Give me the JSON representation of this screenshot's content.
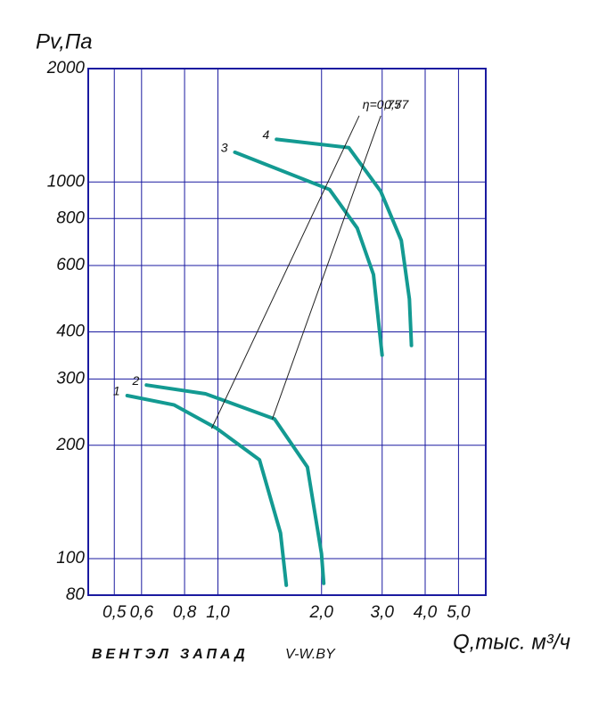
{
  "chart_data": {
    "type": "line",
    "log_x": true,
    "log_y": true,
    "grid": true,
    "y_label": "Pv,Па",
    "x_label": "Q,тыс. м³/ч",
    "xlim": [
      0.42,
      6
    ],
    "ylim": [
      80,
      2000
    ],
    "xticks": [
      {
        "value": 0.5,
        "label": "0,5"
      },
      {
        "value": 0.6,
        "label": "0,6"
      },
      {
        "value": 0.8,
        "label": "0,8"
      },
      {
        "value": 1.0,
        "label": "1,0"
      },
      {
        "value": 2.0,
        "label": "2,0"
      },
      {
        "value": 3.0,
        "label": "3,0"
      },
      {
        "value": 4.0,
        "label": "4,0"
      },
      {
        "value": 5.0,
        "label": "5,0"
      }
    ],
    "yticks": [
      80,
      100,
      200,
      300,
      400,
      600,
      800,
      1000,
      2000
    ],
    "series": [
      {
        "name": "1",
        "color": "#139a92",
        "width": 4,
        "x": [
          0.545,
          0.745,
          0.99,
          1.32,
          1.52,
          1.58
        ],
        "values": [
          271,
          256,
          222,
          183,
          117,
          85
        ]
      },
      {
        "name": "2",
        "color": "#139a92",
        "width": 4,
        "x": [
          0.62,
          0.92,
          1.46,
          1.82,
          2.0,
          2.03
        ],
        "values": [
          289,
          274,
          235,
          175,
          103,
          86
        ]
      },
      {
        "name": "3",
        "color": "#139a92",
        "width": 4,
        "x": [
          1.12,
          2.11,
          2.54,
          2.83,
          3.0
        ],
        "values": [
          1199,
          955,
          754,
          568,
          347
        ]
      },
      {
        "name": "4",
        "color": "#139a92",
        "width": 4,
        "x": [
          1.48,
          2.4,
          2.97,
          3.41,
          3.6,
          3.65
        ],
        "values": [
          1298,
          1234,
          945,
          700,
          489,
          368
        ]
      },
      {
        "name": "η=0,75",
        "color": "#222222",
        "width": 1,
        "x": [
          0.96,
          2.57
        ],
        "values": [
          222,
          1496
        ]
      },
      {
        "name": "0,77",
        "color": "#222222",
        "width": 1,
        "x": [
          1.44,
          2.97
        ],
        "values": [
          235,
          1496
        ]
      }
    ],
    "brand": {
      "part1": "ВЕНТЭЛ",
      "part1_color": "#5aa7d8",
      "part2": "ЗАПАД",
      "part2_color": "#8a8a8a",
      "site": "V-W.BY"
    }
  }
}
